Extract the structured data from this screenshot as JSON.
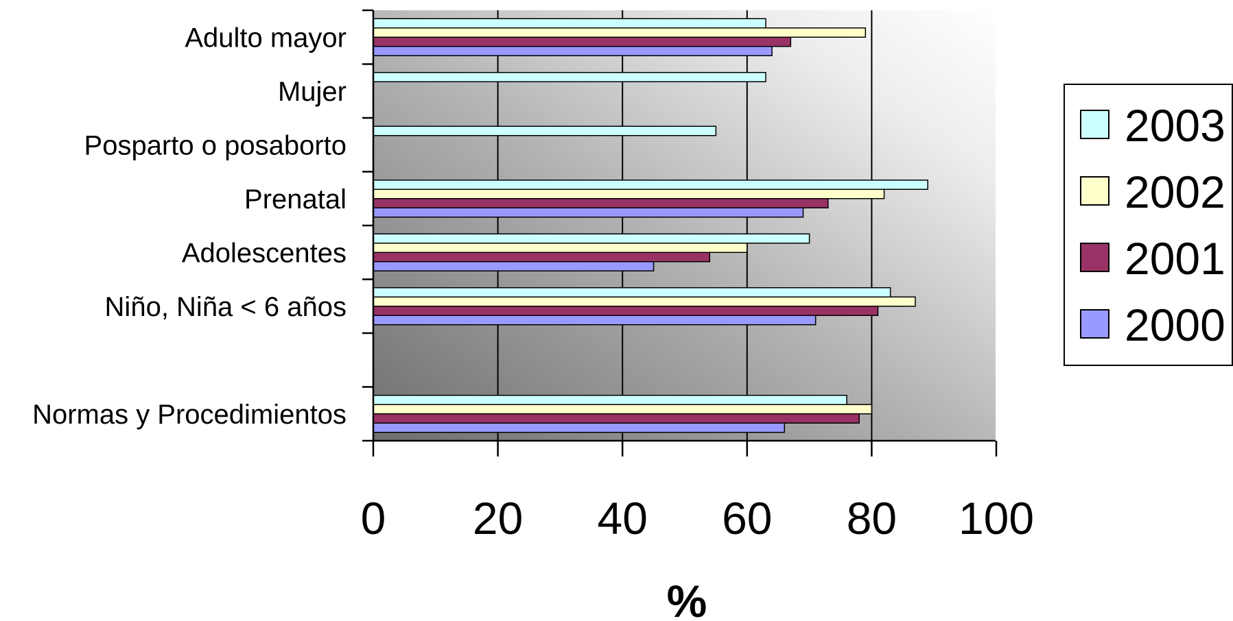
{
  "chart_data": {
    "type": "bar",
    "orientation": "horizontal",
    "xlabel": "%",
    "xlim": [
      0,
      100
    ],
    "xticks": [
      "0",
      "20",
      "40",
      "60",
      "80",
      "100"
    ],
    "categories": [
      "Adulto mayor",
      "Mujer",
      "Posparto o posaborto",
      "Prenatal",
      "Adolescentes",
      "Niño, Niña < 6 años",
      "",
      "Normas y Procedimientos"
    ],
    "series": [
      {
        "name": "2003",
        "color": "#CCFFFF",
        "values": [
          63,
          63,
          55,
          89,
          70,
          83,
          null,
          76
        ]
      },
      {
        "name": "2002",
        "color": "#FFFFCC",
        "values": [
          79,
          null,
          null,
          82,
          60,
          87,
          null,
          80
        ]
      },
      {
        "name": "2001",
        "color": "#993366",
        "values": [
          67,
          null,
          null,
          73,
          54,
          81,
          null,
          78
        ]
      },
      {
        "name": "2000",
        "color": "#9999FF",
        "values": [
          64,
          null,
          null,
          69,
          45,
          71,
          null,
          66
        ]
      }
    ],
    "legend": {
      "position": "right",
      "entries": [
        "2003",
        "2002",
        "2001",
        "2000"
      ]
    },
    "grid": true,
    "background": "gradient light-to-dark"
  }
}
